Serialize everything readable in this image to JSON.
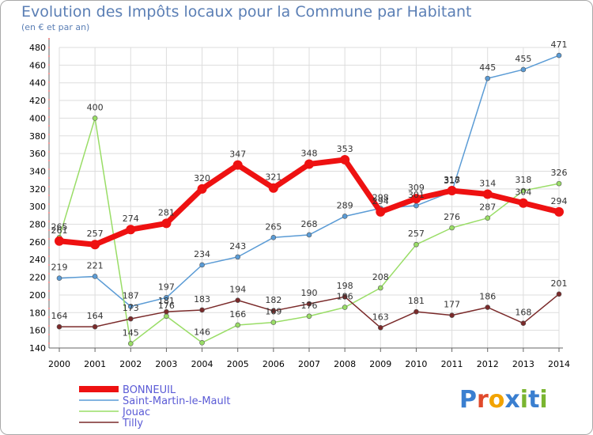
{
  "header": {
    "title": "Evolution des Impôts locaux pour la Commune par Habitant",
    "subtitle": "(en € et par an)"
  },
  "logo": {
    "text": "Proxiti",
    "colors": [
      "#3a7fd0",
      "#e0492b",
      "#f2a300",
      "#3a7fd0",
      "#7ab530",
      "#3a7fd0",
      "#7ab530"
    ]
  },
  "chart_data": {
    "type": "line",
    "title": "Evolution des Impôts locaux pour la Commune par Habitant",
    "subtitle": "(en € et par an)",
    "x": [
      "2000",
      "2001",
      "2002",
      "2003",
      "2004",
      "2005",
      "2006",
      "2007",
      "2008",
      "2009",
      "2010",
      "2011",
      "2012",
      "2013",
      "2014"
    ],
    "ylim": [
      140,
      480
    ],
    "yticks": [
      140,
      160,
      180,
      200,
      220,
      240,
      260,
      280,
      300,
      320,
      340,
      360,
      380,
      400,
      420,
      440,
      460,
      480
    ],
    "grid": true,
    "legend_position": "bottom-left",
    "series": [
      {
        "name": "BONNEUIL",
        "color": "#ee1111",
        "width": 7,
        "values": [
          261,
          257,
          274,
          281,
          320,
          347,
          321,
          348,
          353,
          294,
          309,
          318,
          314,
          304,
          294
        ]
      },
      {
        "name": "Saint-Martin-le-Mault",
        "color": "#5a9bd5",
        "width": 1.5,
        "values": [
          219,
          221,
          187,
          197,
          234,
          243,
          265,
          268,
          289,
          298,
          301,
          317,
          445,
          455,
          471
        ]
      },
      {
        "name": "Jouac",
        "color": "#99dd66",
        "width": 1.5,
        "values": [
          265,
          400,
          145,
          176,
          146,
          166,
          169,
          176,
          186,
          208,
          257,
          276,
          287,
          318,
          326
        ]
      },
      {
        "name": "Tilly",
        "color": "#7a2a2a",
        "width": 1.5,
        "values": [
          164,
          164,
          173,
          181,
          183,
          194,
          182,
          190,
          198,
          163,
          181,
          177,
          186,
          168,
          201
        ]
      }
    ]
  }
}
